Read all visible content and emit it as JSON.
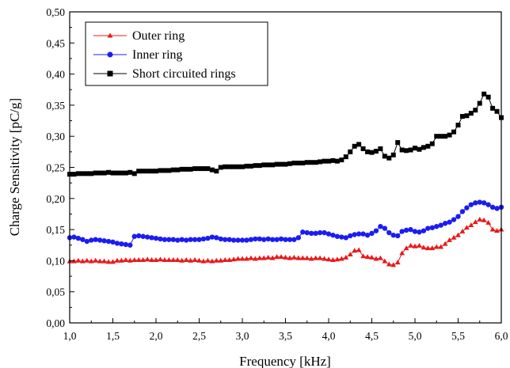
{
  "chart_data": {
    "type": "line",
    "xlabel": "Frequency [kHz]",
    "ylabel": "Charge Sensitivity [pC/g]",
    "xlim": [
      1.0,
      6.0
    ],
    "ylim": [
      0.0,
      0.5
    ],
    "xticks": [
      1.0,
      1.5,
      2.0,
      2.5,
      3.0,
      3.5,
      4.0,
      4.5,
      5.0,
      5.5,
      6.0
    ],
    "xtick_labels": [
      "1,0",
      "1,5",
      "2,0",
      "2,5",
      "3,0",
      "3,5",
      "4,0",
      "4,5",
      "5,0",
      "5,5",
      "6,0"
    ],
    "yticks": [
      0.0,
      0.05,
      0.1,
      0.15,
      0.2,
      0.25,
      0.3,
      0.35,
      0.4,
      0.45,
      0.5
    ],
    "ytick_labels": [
      "0,00",
      "0,05",
      "0,10",
      "0,15",
      "0,20",
      "0,25",
      "0,30",
      "0,35",
      "0,40",
      "0,45",
      "0,50"
    ],
    "grid": false,
    "legend_position": "top-left",
    "series": [
      {
        "name": "Outer ring",
        "color": "#e8191b",
        "marker": "triangle",
        "x": [
          1.0,
          1.05,
          1.1,
          1.15,
          1.2,
          1.25,
          1.3,
          1.35,
          1.4,
          1.45,
          1.5,
          1.55,
          1.6,
          1.65,
          1.7,
          1.75,
          1.8,
          1.85,
          1.9,
          1.95,
          2.0,
          2.05,
          2.1,
          2.15,
          2.2,
          2.25,
          2.3,
          2.35,
          2.4,
          2.45,
          2.5,
          2.55,
          2.6,
          2.65,
          2.7,
          2.75,
          2.8,
          2.85,
          2.9,
          2.95,
          3.0,
          3.05,
          3.1,
          3.15,
          3.2,
          3.25,
          3.3,
          3.35,
          3.4,
          3.45,
          3.5,
          3.55,
          3.6,
          3.65,
          3.7,
          3.75,
          3.8,
          3.85,
          3.9,
          3.95,
          4.0,
          4.05,
          4.1,
          4.15,
          4.2,
          4.25,
          4.3,
          4.35,
          4.4,
          4.45,
          4.5,
          4.55,
          4.6,
          4.65,
          4.7,
          4.75,
          4.8,
          4.85,
          4.9,
          4.95,
          5.0,
          5.05,
          5.1,
          5.15,
          5.2,
          5.25,
          5.3,
          5.35,
          5.4,
          5.45,
          5.5,
          5.55,
          5.6,
          5.65,
          5.7,
          5.75,
          5.8,
          5.85,
          5.9,
          5.95,
          6.0
        ],
        "values": [
          0.099,
          0.099,
          0.1,
          0.099,
          0.1,
          0.099,
          0.1,
          0.099,
          0.099,
          0.098,
          0.098,
          0.1,
          0.1,
          0.101,
          0.1,
          0.101,
          0.101,
          0.101,
          0.102,
          0.101,
          0.101,
          0.102,
          0.101,
          0.101,
          0.101,
          0.101,
          0.1,
          0.101,
          0.1,
          0.101,
          0.1,
          0.099,
          0.1,
          0.099,
          0.1,
          0.1,
          0.101,
          0.101,
          0.102,
          0.103,
          0.103,
          0.103,
          0.104,
          0.103,
          0.104,
          0.104,
          0.105,
          0.104,
          0.106,
          0.106,
          0.105,
          0.104,
          0.105,
          0.104,
          0.104,
          0.104,
          0.103,
          0.104,
          0.104,
          0.103,
          0.102,
          0.101,
          0.102,
          0.103,
          0.105,
          0.11,
          0.116,
          0.117,
          0.107,
          0.106,
          0.105,
          0.103,
          0.104,
          0.099,
          0.094,
          0.093,
          0.097,
          0.112,
          0.12,
          0.124,
          0.123,
          0.124,
          0.121,
          0.12,
          0.12,
          0.122,
          0.122,
          0.127,
          0.133,
          0.137,
          0.141,
          0.147,
          0.153,
          0.157,
          0.162,
          0.166,
          0.165,
          0.161,
          0.15,
          0.148,
          0.15
        ]
      },
      {
        "name": "Inner ring",
        "color": "#1c1cf0",
        "marker": "circle",
        "x": [
          1.0,
          1.05,
          1.1,
          1.15,
          1.2,
          1.25,
          1.3,
          1.35,
          1.4,
          1.45,
          1.5,
          1.55,
          1.6,
          1.65,
          1.7,
          1.75,
          1.8,
          1.85,
          1.9,
          1.95,
          2.0,
          2.05,
          2.1,
          2.15,
          2.2,
          2.25,
          2.3,
          2.35,
          2.4,
          2.45,
          2.5,
          2.55,
          2.6,
          2.65,
          2.7,
          2.75,
          2.8,
          2.85,
          2.9,
          2.95,
          3.0,
          3.05,
          3.1,
          3.15,
          3.2,
          3.25,
          3.3,
          3.35,
          3.4,
          3.45,
          3.5,
          3.55,
          3.6,
          3.65,
          3.7,
          3.75,
          3.8,
          3.85,
          3.9,
          3.95,
          4.0,
          4.05,
          4.1,
          4.15,
          4.2,
          4.25,
          4.3,
          4.35,
          4.4,
          4.45,
          4.5,
          4.55,
          4.6,
          4.65,
          4.7,
          4.75,
          4.8,
          4.85,
          4.9,
          4.95,
          5.0,
          5.05,
          5.1,
          5.15,
          5.2,
          5.25,
          5.3,
          5.35,
          5.4,
          5.45,
          5.5,
          5.55,
          5.6,
          5.65,
          5.7,
          5.75,
          5.8,
          5.85,
          5.9,
          5.95,
          6.0
        ],
        "values": [
          0.137,
          0.138,
          0.136,
          0.134,
          0.131,
          0.133,
          0.134,
          0.133,
          0.132,
          0.131,
          0.13,
          0.128,
          0.127,
          0.126,
          0.125,
          0.139,
          0.14,
          0.139,
          0.138,
          0.137,
          0.136,
          0.135,
          0.134,
          0.134,
          0.134,
          0.133,
          0.134,
          0.133,
          0.134,
          0.134,
          0.134,
          0.135,
          0.136,
          0.138,
          0.137,
          0.135,
          0.134,
          0.134,
          0.133,
          0.133,
          0.133,
          0.133,
          0.134,
          0.135,
          0.135,
          0.134,
          0.135,
          0.134,
          0.134,
          0.135,
          0.134,
          0.134,
          0.134,
          0.137,
          0.146,
          0.145,
          0.144,
          0.144,
          0.145,
          0.145,
          0.143,
          0.141,
          0.139,
          0.138,
          0.137,
          0.14,
          0.142,
          0.143,
          0.143,
          0.141,
          0.144,
          0.148,
          0.155,
          0.152,
          0.145,
          0.141,
          0.14,
          0.147,
          0.149,
          0.15,
          0.147,
          0.146,
          0.148,
          0.152,
          0.153,
          0.155,
          0.157,
          0.16,
          0.162,
          0.166,
          0.171,
          0.179,
          0.185,
          0.19,
          0.193,
          0.194,
          0.193,
          0.19,
          0.186,
          0.184,
          0.186
        ]
      },
      {
        "name": "Short circuited rings",
        "color": "#000000",
        "marker": "square",
        "x": [
          1.0,
          1.05,
          1.1,
          1.15,
          1.2,
          1.25,
          1.3,
          1.35,
          1.4,
          1.45,
          1.5,
          1.55,
          1.6,
          1.65,
          1.7,
          1.75,
          1.8,
          1.85,
          1.9,
          1.95,
          2.0,
          2.05,
          2.1,
          2.15,
          2.2,
          2.25,
          2.3,
          2.35,
          2.4,
          2.45,
          2.5,
          2.55,
          2.6,
          2.65,
          2.7,
          2.75,
          2.8,
          2.85,
          2.9,
          2.95,
          3.0,
          3.05,
          3.1,
          3.15,
          3.2,
          3.25,
          3.3,
          3.35,
          3.4,
          3.45,
          3.5,
          3.55,
          3.6,
          3.65,
          3.7,
          3.75,
          3.8,
          3.85,
          3.9,
          3.95,
          4.0,
          4.05,
          4.1,
          4.15,
          4.2,
          4.25,
          4.3,
          4.35,
          4.4,
          4.45,
          4.5,
          4.55,
          4.6,
          4.65,
          4.7,
          4.75,
          4.8,
          4.85,
          4.9,
          4.95,
          5.0,
          5.05,
          5.1,
          5.15,
          5.2,
          5.25,
          5.3,
          5.35,
          5.4,
          5.45,
          5.5,
          5.55,
          5.6,
          5.65,
          5.7,
          5.75,
          5.8,
          5.85,
          5.9,
          5.95,
          6.0
        ],
        "values": [
          0.239,
          0.239,
          0.24,
          0.24,
          0.24,
          0.24,
          0.241,
          0.241,
          0.241,
          0.242,
          0.241,
          0.241,
          0.241,
          0.241,
          0.242,
          0.24,
          0.244,
          0.244,
          0.244,
          0.244,
          0.244,
          0.245,
          0.245,
          0.245,
          0.246,
          0.246,
          0.247,
          0.247,
          0.247,
          0.248,
          0.248,
          0.248,
          0.248,
          0.246,
          0.244,
          0.25,
          0.251,
          0.251,
          0.251,
          0.251,
          0.251,
          0.252,
          0.252,
          0.253,
          0.253,
          0.254,
          0.254,
          0.254,
          0.255,
          0.255,
          0.255,
          0.256,
          0.257,
          0.257,
          0.257,
          0.258,
          0.258,
          0.258,
          0.259,
          0.26,
          0.26,
          0.261,
          0.26,
          0.262,
          0.267,
          0.275,
          0.284,
          0.287,
          0.28,
          0.275,
          0.274,
          0.276,
          0.28,
          0.268,
          0.265,
          0.27,
          0.29,
          0.278,
          0.277,
          0.278,
          0.281,
          0.279,
          0.282,
          0.284,
          0.288,
          0.3,
          0.3,
          0.3,
          0.302,
          0.307,
          0.318,
          0.332,
          0.333,
          0.337,
          0.342,
          0.353,
          0.368,
          0.363,
          0.345,
          0.34,
          0.33
        ]
      }
    ]
  }
}
